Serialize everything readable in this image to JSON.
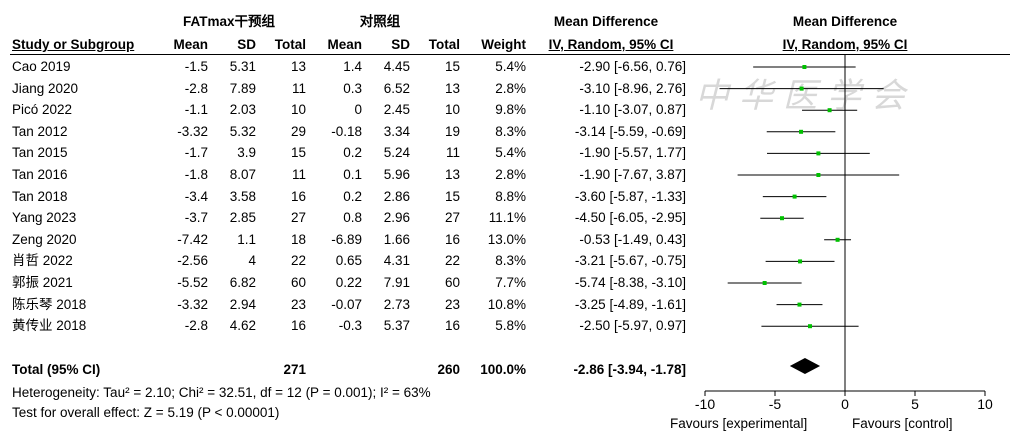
{
  "headers": {
    "group_exp": "FATmax干预组",
    "group_ctl": "对照组",
    "md_left": "Mean Difference",
    "md_right": "Mean Difference",
    "study": "Study or Subgroup",
    "mean1": "Mean",
    "sd1": "SD",
    "total1": "Total",
    "mean2": "Mean",
    "sd2": "SD",
    "total2": "Total",
    "weight": "Weight",
    "ci_left": "IV, Random, 95% CI",
    "ci_right": "IV, Random, 95% CI"
  },
  "studies": [
    {
      "name": "Cao 2019",
      "m1": "-1.5",
      "sd1": "5.31",
      "n1": "13",
      "m2": "1.4",
      "sd2": "4.45",
      "n2": "15",
      "weight": "5.4%",
      "ci": "-2.90 [-6.56, 0.76]"
    },
    {
      "name": "Jiang 2020",
      "m1": "-2.8",
      "sd1": "7.89",
      "n1": "11",
      "m2": "0.3",
      "sd2": "6.52",
      "n2": "13",
      "weight": "2.8%",
      "ci": "-3.10 [-8.96, 2.76]"
    },
    {
      "name": "Picó 2022",
      "m1": "-1.1",
      "sd1": "2.03",
      "n1": "10",
      "m2": "0",
      "sd2": "2.45",
      "n2": "10",
      "weight": "9.8%",
      "ci": "-1.10 [-3.07, 0.87]"
    },
    {
      "name": "Tan 2012",
      "m1": "-3.32",
      "sd1": "5.32",
      "n1": "29",
      "m2": "-0.18",
      "sd2": "3.34",
      "n2": "19",
      "weight": "8.3%",
      "ci": "-3.14 [-5.59, -0.69]"
    },
    {
      "name": "Tan 2015",
      "m1": "-1.7",
      "sd1": "3.9",
      "n1": "15",
      "m2": "0.2",
      "sd2": "5.24",
      "n2": "11",
      "weight": "5.4%",
      "ci": "-1.90 [-5.57, 1.77]"
    },
    {
      "name": "Tan 2016",
      "m1": "-1.8",
      "sd1": "8.07",
      "n1": "11",
      "m2": "0.1",
      "sd2": "5.96",
      "n2": "13",
      "weight": "2.8%",
      "ci": "-1.90 [-7.67, 3.87]"
    },
    {
      "name": "Tan 2018",
      "m1": "-3.4",
      "sd1": "3.58",
      "n1": "16",
      "m2": "0.2",
      "sd2": "2.86",
      "n2": "15",
      "weight": "8.8%",
      "ci": "-3.60 [-5.87, -1.33]"
    },
    {
      "name": "Yang 2023",
      "m1": "-3.7",
      "sd1": "2.85",
      "n1": "27",
      "m2": "0.8",
      "sd2": "2.96",
      "n2": "27",
      "weight": "11.1%",
      "ci": "-4.50 [-6.05, -2.95]"
    },
    {
      "name": "Zeng 2020",
      "m1": "-7.42",
      "sd1": "1.1",
      "n1": "18",
      "m2": "-6.89",
      "sd2": "1.66",
      "n2": "16",
      "weight": "13.0%",
      "ci": "-0.53 [-1.49, 0.43]"
    },
    {
      "name": "肖哲 2022",
      "m1": "-2.56",
      "sd1": "4",
      "n1": "22",
      "m2": "0.65",
      "sd2": "4.31",
      "n2": "22",
      "weight": "8.3%",
      "ci": "-3.21 [-5.67, -0.75]"
    },
    {
      "name": "郭振 2021",
      "m1": "-5.52",
      "sd1": "6.82",
      "n1": "60",
      "m2": "0.22",
      "sd2": "7.91",
      "n2": "60",
      "weight": "7.7%",
      "ci": "-5.74 [-8.38, -3.10]"
    },
    {
      "name": "陈乐琴 2018",
      "m1": "-3.32",
      "sd1": "2.94",
      "n1": "23",
      "m2": "-0.07",
      "sd2": "2.73",
      "n2": "23",
      "weight": "10.8%",
      "ci": "-3.25 [-4.89, -1.61]"
    },
    {
      "name": "黄传业 2018",
      "m1": "-2.8",
      "sd1": "4.62",
      "n1": "16",
      "m2": "-0.3",
      "sd2": "5.37",
      "n2": "16",
      "weight": "5.8%",
      "ci": "-2.50 [-5.97, 0.97]"
    }
  ],
  "total": {
    "label": "Total (95% CI)",
    "n1": "271",
    "n2": "260",
    "weight": "100.0%",
    "ci": "-2.86 [-3.94, -1.78]"
  },
  "heterogeneity": "Heterogeneity: Tau² = 2.10; Chi² = 32.51, df = 12 (P = 0.001); I² = 63%",
  "overall_effect": "Test for overall effect: Z = 5.19 (P < 0.00001)",
  "favours_left": "Favours [experimental]",
  "favours_right": "Favours [control]",
  "watermark": "中华医学会",
  "colors": {
    "point": "#00c000",
    "line": "#000000",
    "diamond": "#000000"
  },
  "chart_data": {
    "type": "forest",
    "xlim": [
      -10,
      10
    ],
    "ticks": [
      -10,
      -5,
      0,
      5,
      10
    ],
    "tick_labels": [
      "-10",
      "-5",
      "0",
      "5",
      "10"
    ],
    "effects": [
      {
        "md": -2.9,
        "lo": -6.56,
        "hi": 0.76,
        "w": 5.4
      },
      {
        "md": -3.1,
        "lo": -8.96,
        "hi": 2.76,
        "w": 2.8
      },
      {
        "md": -1.1,
        "lo": -3.07,
        "hi": 0.87,
        "w": 9.8
      },
      {
        "md": -3.14,
        "lo": -5.59,
        "hi": -0.69,
        "w": 8.3
      },
      {
        "md": -1.9,
        "lo": -5.57,
        "hi": 1.77,
        "w": 5.4
      },
      {
        "md": -1.9,
        "lo": -7.67,
        "hi": 3.87,
        "w": 2.8
      },
      {
        "md": -3.6,
        "lo": -5.87,
        "hi": -1.33,
        "w": 8.8
      },
      {
        "md": -4.5,
        "lo": -6.05,
        "hi": -2.95,
        "w": 11.1
      },
      {
        "md": -0.53,
        "lo": -1.49,
        "hi": 0.43,
        "w": 13.0
      },
      {
        "md": -3.21,
        "lo": -5.67,
        "hi": -0.75,
        "w": 8.3
      },
      {
        "md": -5.74,
        "lo": -8.38,
        "hi": -3.1,
        "w": 7.7
      },
      {
        "md": -3.25,
        "lo": -4.89,
        "hi": -1.61,
        "w": 10.8
      },
      {
        "md": -2.5,
        "lo": -5.97,
        "hi": 0.97,
        "w": 5.8
      }
    ],
    "pooled": {
      "md": -2.86,
      "lo": -3.94,
      "hi": -1.78
    }
  }
}
